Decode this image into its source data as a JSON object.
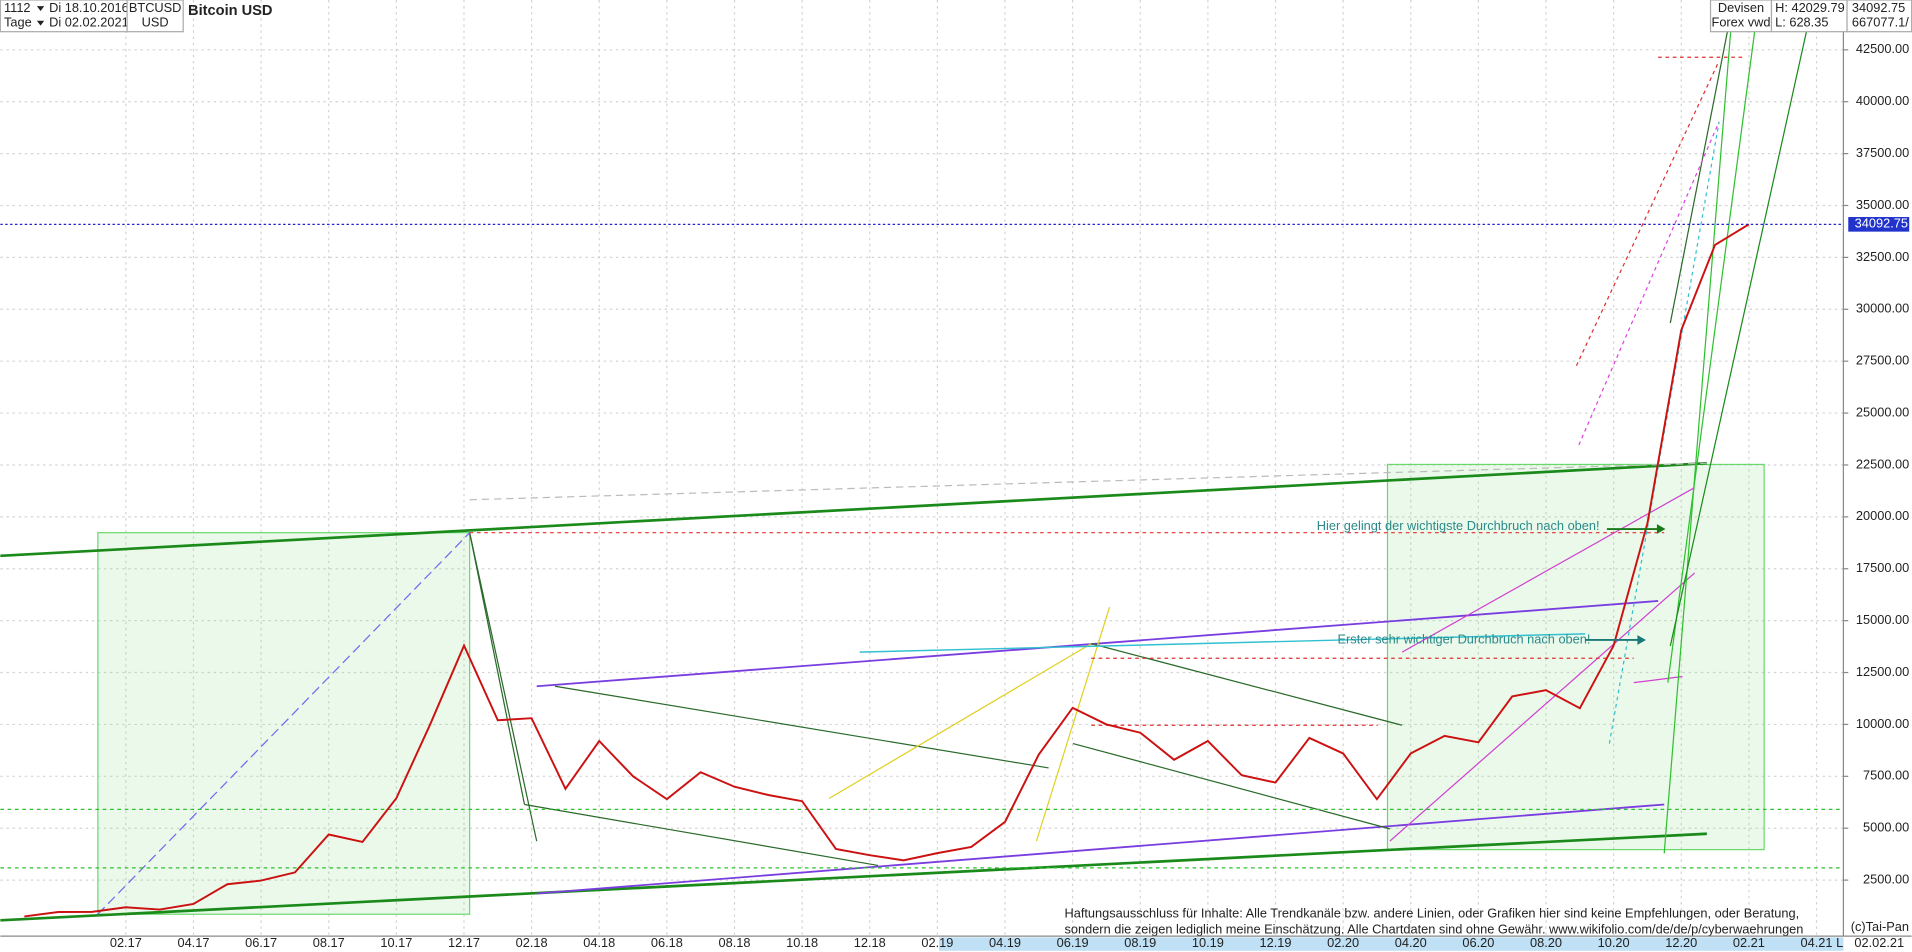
{
  "header": {
    "period": "1112",
    "from": "Di 18.10.2016",
    "unit": "Tage",
    "to": "Di 02.02.2021",
    "symbol": "BTCUSD",
    "currency": "USD",
    "name": "Bitcoin USD",
    "market": "Devisen",
    "source": "Forex vwd",
    "high": "H: 42029.79",
    "low": "L: 628.35",
    "last": 34092.75,
    "volume": "667077.1/"
  },
  "chart_data": {
    "type": "line",
    "x": [
      null,
      null,
      null,
      "02.17",
      null,
      "04.17",
      null,
      "06.17",
      null,
      "08.17",
      null,
      "10.17",
      null,
      "12.17",
      null,
      "02.18",
      null,
      "04.18",
      null,
      "06.18",
      null,
      "08.18",
      null,
      "10.18",
      null,
      "12.18",
      null,
      "02.19",
      null,
      "04.19",
      null,
      "06.19",
      null,
      "08.19",
      null,
      "10.19",
      null,
      "12.19",
      null,
      "02.20",
      null,
      "04.20",
      null,
      "06.20",
      null,
      "08.20",
      null,
      "10.20",
      null,
      "12.20",
      null,
      "02.21",
      null,
      "04.21"
    ],
    "series": [
      {
        "name": "Bitcoin USD",
        "color": "#cc1111",
        "values": [
          750,
          960,
          970,
          1190,
          1080,
          1350,
          2300,
          2480,
          2870,
          4700,
          4340,
          6450,
          10000,
          13800,
          10200,
          10300,
          6900,
          9200,
          7500,
          6400,
          7700,
          7000,
          6600,
          6300,
          4000,
          3700,
          3450,
          3800,
          4100,
          5300,
          8550,
          10800,
          10000,
          9600,
          8300,
          9200,
          7550,
          7200,
          9350,
          8600,
          6400,
          8600,
          9450,
          9140,
          11350,
          11650,
          10780,
          13800,
          19700,
          29000,
          33100,
          34092.75,
          null,
          null
        ]
      }
    ],
    "ylim": [
      -200,
      44900
    ],
    "yticks": [
      {
        "value": 2500,
        "label": "2500.00"
      },
      {
        "value": 5000,
        "label": "5000.00"
      },
      {
        "value": 7500,
        "label": "7500.00"
      },
      {
        "value": 10000,
        "label": "10000.00"
      },
      {
        "value": 12500,
        "label": "12500.00"
      },
      {
        "value": 15000,
        "label": "15000.00"
      },
      {
        "value": 17500,
        "label": "17500.00"
      },
      {
        "value": 20000,
        "label": "20000.00"
      },
      {
        "value": 22500,
        "label": "22500.00"
      },
      {
        "value": 25000,
        "label": "25000.00"
      },
      {
        "value": 27500,
        "label": "27500.00"
      },
      {
        "value": 30000,
        "label": "30000.00"
      },
      {
        "value": 32500,
        "label": "32500.00"
      },
      {
        "value": 35000,
        "label": "35000.00"
      },
      {
        "value": 37500,
        "label": "37500.00"
      },
      {
        "value": 40000,
        "label": "40000.00"
      },
      {
        "value": 42500,
        "label": "42500.00"
      }
    ],
    "current_price": 34092.75,
    "grid": true,
    "annotations": [
      "Hier gelingt der wichtigste Durchbruch nach oben!",
      "Erster sehr wichtiger Durchbruch nach oben!"
    ]
  },
  "disclaimer": [
    "Haftungsausschluss für Inhalte: Alle Trendkanäle bzw. andere Linien, oder Grafiken hier sind keine Empfehlungen, oder Beratung,",
    "sondern die zeigen lediglich meine  Einschätzung. Alle Chartdaten sind ohne Gewähr.  www.wikifolio.com/de/de/p/cyberwaehrungen"
  ],
  "footer": {
    "copyright": "(c)Tai-Pan",
    "date": "02.02.21",
    "mode": "L"
  }
}
